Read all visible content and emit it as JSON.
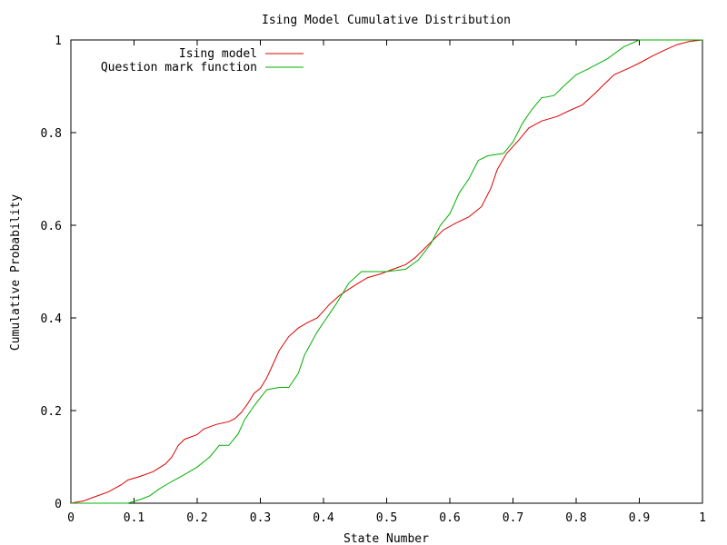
{
  "chart_data": {
    "type": "line",
    "title": "Ising Model Cumulative Distribution",
    "xlabel": "State Number",
    "ylabel": "Cumulative Probability",
    "xlim": [
      0,
      1
    ],
    "ylim": [
      0,
      1
    ],
    "xticks": [
      "0",
      "0.1",
      "0.2",
      "0.3",
      "0.4",
      "0.5",
      "0.6",
      "0.7",
      "0.8",
      "0.9",
      "1"
    ],
    "yticks": [
      "0",
      "0.2",
      "0.4",
      "0.6",
      "0.8",
      "1"
    ],
    "grid": false,
    "legend_position": "top-left",
    "series": [
      {
        "name": "Ising model",
        "color": "#e00000",
        "points": [
          [
            0.0,
            0.0
          ],
          [
            0.02,
            0.005
          ],
          [
            0.04,
            0.015
          ],
          [
            0.06,
            0.025
          ],
          [
            0.08,
            0.04
          ],
          [
            0.09,
            0.05
          ],
          [
            0.11,
            0.058
          ],
          [
            0.13,
            0.068
          ],
          [
            0.15,
            0.085
          ],
          [
            0.16,
            0.1
          ],
          [
            0.17,
            0.125
          ],
          [
            0.18,
            0.138
          ],
          [
            0.2,
            0.148
          ],
          [
            0.21,
            0.16
          ],
          [
            0.23,
            0.17
          ],
          [
            0.25,
            0.176
          ],
          [
            0.26,
            0.183
          ],
          [
            0.27,
            0.196
          ],
          [
            0.28,
            0.215
          ],
          [
            0.29,
            0.237
          ],
          [
            0.3,
            0.248
          ],
          [
            0.31,
            0.27
          ],
          [
            0.32,
            0.3
          ],
          [
            0.33,
            0.33
          ],
          [
            0.345,
            0.36
          ],
          [
            0.36,
            0.378
          ],
          [
            0.375,
            0.39
          ],
          [
            0.39,
            0.4
          ],
          [
            0.4,
            0.415
          ],
          [
            0.41,
            0.43
          ],
          [
            0.425,
            0.448
          ],
          [
            0.44,
            0.462
          ],
          [
            0.455,
            0.475
          ],
          [
            0.47,
            0.487
          ],
          [
            0.49,
            0.495
          ],
          [
            0.5,
            0.5
          ],
          [
            0.51,
            0.505
          ],
          [
            0.53,
            0.515
          ],
          [
            0.545,
            0.53
          ],
          [
            0.56,
            0.55
          ],
          [
            0.575,
            0.57
          ],
          [
            0.59,
            0.59
          ],
          [
            0.61,
            0.605
          ],
          [
            0.63,
            0.618
          ],
          [
            0.65,
            0.64
          ],
          [
            0.665,
            0.68
          ],
          [
            0.675,
            0.72
          ],
          [
            0.69,
            0.755
          ],
          [
            0.71,
            0.785
          ],
          [
            0.725,
            0.81
          ],
          [
            0.745,
            0.825
          ],
          [
            0.77,
            0.835
          ],
          [
            0.79,
            0.848
          ],
          [
            0.81,
            0.86
          ],
          [
            0.83,
            0.885
          ],
          [
            0.845,
            0.905
          ],
          [
            0.86,
            0.925
          ],
          [
            0.885,
            0.94
          ],
          [
            0.9,
            0.95
          ],
          [
            0.92,
            0.965
          ],
          [
            0.94,
            0.978
          ],
          [
            0.96,
            0.99
          ],
          [
            0.98,
            0.997
          ],
          [
            1.0,
            1.0
          ]
        ]
      },
      {
        "name": "Question mark function",
        "color": "#00b000",
        "points": [
          [
            0.0,
            0.0
          ],
          [
            0.09,
            0.0
          ],
          [
            0.11,
            0.008
          ],
          [
            0.125,
            0.016
          ],
          [
            0.14,
            0.031
          ],
          [
            0.16,
            0.047
          ],
          [
            0.18,
            0.062
          ],
          [
            0.2,
            0.078
          ],
          [
            0.22,
            0.1
          ],
          [
            0.235,
            0.125
          ],
          [
            0.25,
            0.125
          ],
          [
            0.265,
            0.15
          ],
          [
            0.275,
            0.18
          ],
          [
            0.29,
            0.21
          ],
          [
            0.31,
            0.245
          ],
          [
            0.33,
            0.25
          ],
          [
            0.345,
            0.25
          ],
          [
            0.36,
            0.28
          ],
          [
            0.37,
            0.32
          ],
          [
            0.39,
            0.37
          ],
          [
            0.405,
            0.4
          ],
          [
            0.42,
            0.43
          ],
          [
            0.44,
            0.475
          ],
          [
            0.46,
            0.5
          ],
          [
            0.5,
            0.5
          ],
          [
            0.53,
            0.505
          ],
          [
            0.55,
            0.525
          ],
          [
            0.57,
            0.56
          ],
          [
            0.585,
            0.6
          ],
          [
            0.6,
            0.625
          ],
          [
            0.615,
            0.67
          ],
          [
            0.63,
            0.7
          ],
          [
            0.645,
            0.74
          ],
          [
            0.66,
            0.75
          ],
          [
            0.685,
            0.755
          ],
          [
            0.7,
            0.78
          ],
          [
            0.715,
            0.82
          ],
          [
            0.73,
            0.85
          ],
          [
            0.745,
            0.875
          ],
          [
            0.765,
            0.88
          ],
          [
            0.78,
            0.9
          ],
          [
            0.8,
            0.925
          ],
          [
            0.82,
            0.938
          ],
          [
            0.85,
            0.96
          ],
          [
            0.875,
            0.985
          ],
          [
            0.9,
            1.0
          ],
          [
            1.0,
            1.0
          ]
        ]
      }
    ]
  }
}
